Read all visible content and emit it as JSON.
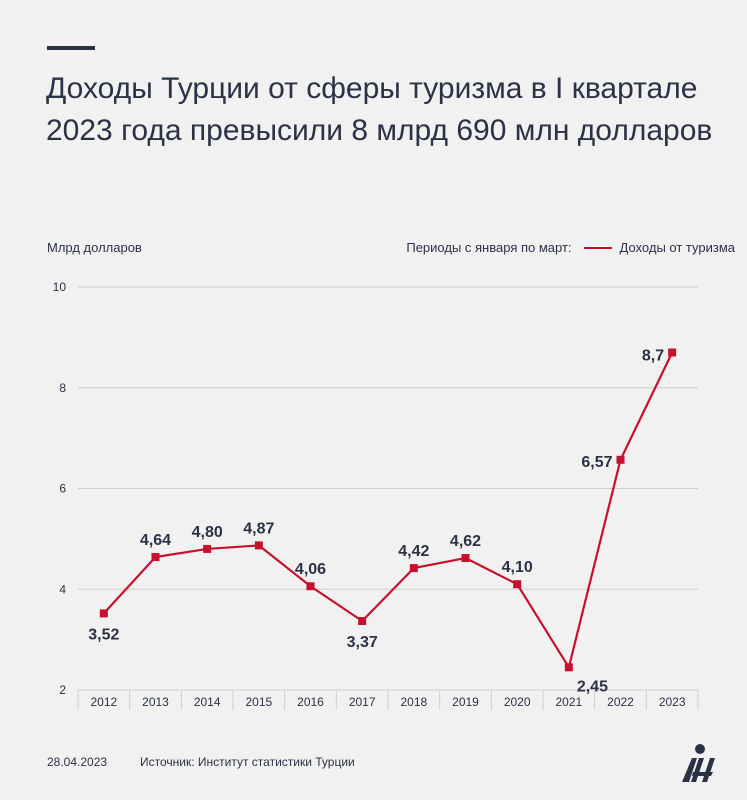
{
  "header": {
    "title": "Доходы Турции от сферы туризма в I квартале 2023 года превысили 8 млрд 690 млн долларов"
  },
  "legend": {
    "period_label": "Периоды с января по март:",
    "series_label": "Доходы от туризма"
  },
  "footer": {
    "date": "28.04.2023",
    "source": "Источник: Институт статистики Турции"
  },
  "colors": {
    "line": "#c8102e",
    "text": "#2b3245",
    "grid": "#cfcfcf"
  },
  "chart_data": {
    "type": "line",
    "ylabel": "Млрд долларов",
    "xlabel": "",
    "categories": [
      "2012",
      "2013",
      "2014",
      "2015",
      "2016",
      "2017",
      "2018",
      "2019",
      "2020",
      "2021",
      "2022",
      "2023"
    ],
    "series": [
      {
        "name": "Доходы от туризма",
        "values": [
          3.52,
          4.64,
          4.8,
          4.87,
          4.06,
          3.37,
          4.42,
          4.62,
          4.1,
          2.45,
          6.57,
          8.7
        ]
      }
    ],
    "data_labels": [
      "3,52",
      "4,64",
      "4,80",
      "4,87",
      "4,06",
      "3,37",
      "4,42",
      "4,62",
      "4,10",
      "2,45",
      "6,57",
      "8,7"
    ],
    "ylim": [
      2,
      10
    ],
    "yticks": [
      "2",
      "4",
      "6",
      "8",
      "10"
    ],
    "grid": true
  }
}
